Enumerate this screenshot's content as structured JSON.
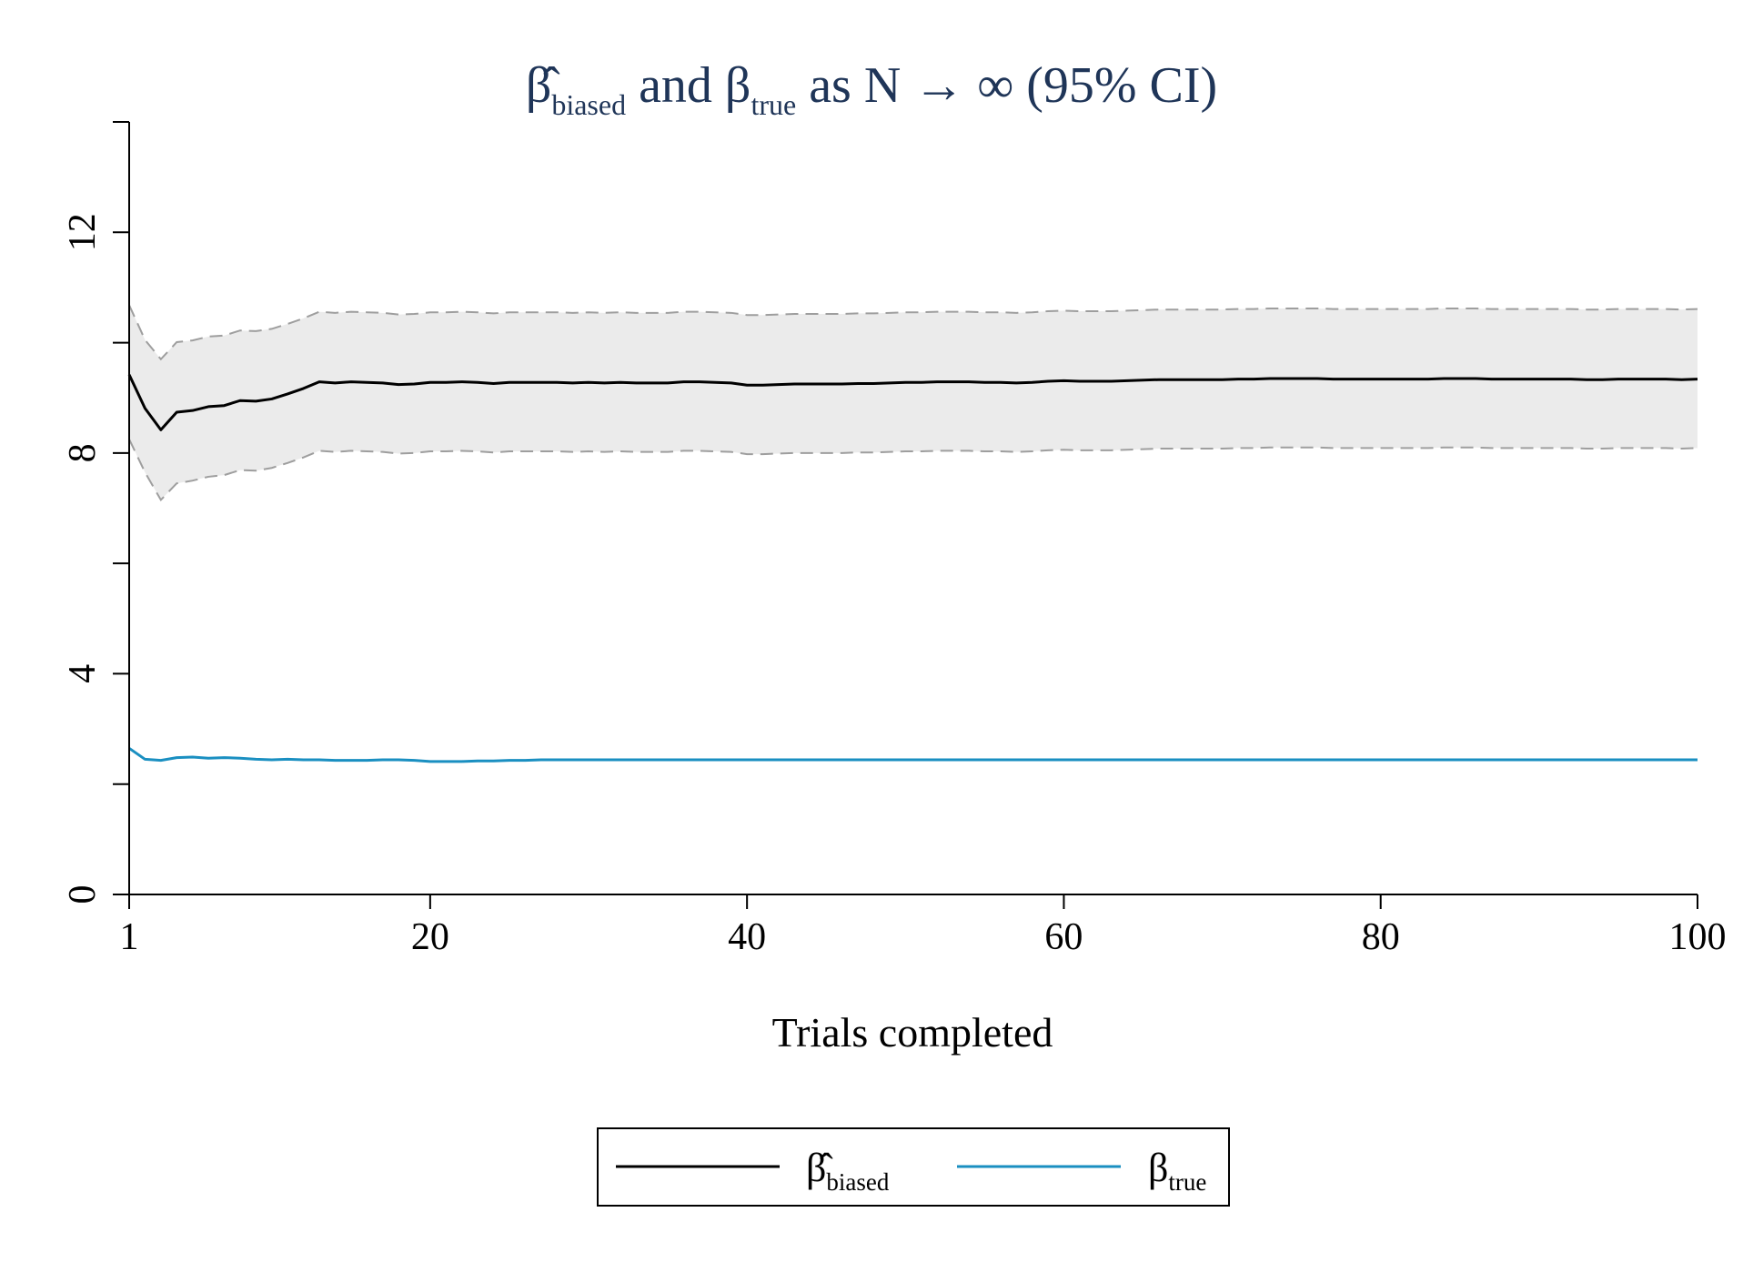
{
  "chart_data": {
    "type": "line",
    "title": {
      "beta_hat_symbol": "β̂",
      "sub_biased": "biased",
      "and_text": " and β",
      "sub_true": "true",
      "rest": " as N → ∞ (95% CI)"
    },
    "xlabel": "Trials completed",
    "ylabel": "",
    "xlim": [
      1,
      100
    ],
    "ylim": [
      0,
      14
    ],
    "x_ticks": [
      1,
      20,
      40,
      60,
      80,
      100
    ],
    "x_tick_labels": [
      "1",
      "20",
      "40",
      "60",
      "80",
      "100"
    ],
    "y_ticks_labeled": [
      0,
      4,
      8,
      12
    ],
    "y_tick_labels": [
      "0",
      "4",
      "8",
      "12"
    ],
    "y_ticks_minor": [
      2,
      6,
      10,
      14
    ],
    "grid": false,
    "legend_position": "bottom-center",
    "colors": {
      "biased": "#000000",
      "true": "#1a8fc1",
      "ci_fill": "#ebebeb",
      "ci_border": "#9e9e9e",
      "title": "#1f3558",
      "axis": "#000000"
    },
    "series": [
      {
        "name": "β̂",
        "subscript": "biased",
        "key": "biased",
        "x": [
          1,
          2,
          3,
          4,
          5,
          6,
          7,
          8,
          9,
          10,
          11,
          12,
          13,
          14,
          15,
          16,
          17,
          18,
          19,
          20,
          21,
          22,
          23,
          24,
          25,
          26,
          27,
          28,
          29,
          30,
          31,
          32,
          33,
          34,
          35,
          36,
          37,
          38,
          39,
          40,
          41,
          42,
          43,
          44,
          45,
          46,
          47,
          48,
          49,
          50,
          51,
          52,
          53,
          54,
          55,
          56,
          57,
          58,
          59,
          60,
          61,
          62,
          63,
          64,
          65,
          66,
          67,
          68,
          69,
          70,
          71,
          72,
          73,
          74,
          75,
          76,
          77,
          78,
          79,
          80,
          81,
          82,
          83,
          84,
          85,
          86,
          87,
          88,
          89,
          90,
          91,
          92,
          93,
          94,
          95,
          96,
          97,
          98,
          99,
          100
        ],
        "values": [
          9.42,
          8.81,
          8.42,
          8.74,
          8.77,
          8.84,
          8.86,
          8.95,
          8.94,
          8.98,
          9.07,
          9.17,
          9.29,
          9.27,
          9.29,
          9.28,
          9.27,
          9.24,
          9.25,
          9.28,
          9.28,
          9.29,
          9.28,
          9.26,
          9.28,
          9.28,
          9.28,
          9.28,
          9.27,
          9.28,
          9.27,
          9.28,
          9.27,
          9.27,
          9.27,
          9.29,
          9.29,
          9.28,
          9.27,
          9.23,
          9.23,
          9.24,
          9.25,
          9.25,
          9.25,
          9.25,
          9.26,
          9.26,
          9.27,
          9.28,
          9.28,
          9.29,
          9.29,
          9.29,
          9.28,
          9.28,
          9.27,
          9.28,
          9.3,
          9.31,
          9.3,
          9.3,
          9.3,
          9.31,
          9.32,
          9.33,
          9.33,
          9.33,
          9.33,
          9.33,
          9.34,
          9.34,
          9.35,
          9.35,
          9.35,
          9.35,
          9.34,
          9.34,
          9.34,
          9.34,
          9.34,
          9.34,
          9.34,
          9.35,
          9.35,
          9.35,
          9.34,
          9.34,
          9.34,
          9.34,
          9.34,
          9.34,
          9.33,
          9.33,
          9.34,
          9.34,
          9.34,
          9.34,
          9.33,
          9.34
        ],
        "ci_lower": [
          8.25,
          7.65,
          7.15,
          7.45,
          7.5,
          7.57,
          7.6,
          7.69,
          7.68,
          7.73,
          7.82,
          7.92,
          8.04,
          8.02,
          8.04,
          8.03,
          8.02,
          7.99,
          8.0,
          8.03,
          8.03,
          8.04,
          8.03,
          8.01,
          8.03,
          8.03,
          8.03,
          8.03,
          8.02,
          8.03,
          8.02,
          8.03,
          8.02,
          8.02,
          8.02,
          8.04,
          8.04,
          8.03,
          8.02,
          7.98,
          7.98,
          7.99,
          8.0,
          8.0,
          8.0,
          8.0,
          8.01,
          8.01,
          8.02,
          8.03,
          8.03,
          8.04,
          8.04,
          8.04,
          8.03,
          8.03,
          8.02,
          8.03,
          8.05,
          8.06,
          8.05,
          8.05,
          8.05,
          8.06,
          8.07,
          8.08,
          8.08,
          8.08,
          8.08,
          8.08,
          8.09,
          8.09,
          8.1,
          8.1,
          8.1,
          8.1,
          8.09,
          8.09,
          8.09,
          8.09,
          8.09,
          8.09,
          8.09,
          8.1,
          8.1,
          8.1,
          8.09,
          8.09,
          8.09,
          8.09,
          8.09,
          8.09,
          8.08,
          8.08,
          8.09,
          8.09,
          8.09,
          8.09,
          8.08,
          8.09
        ],
        "ci_upper": [
          10.68,
          10.05,
          9.7,
          10.01,
          10.04,
          10.11,
          10.13,
          10.22,
          10.21,
          10.25,
          10.34,
          10.44,
          10.56,
          10.54,
          10.56,
          10.55,
          10.54,
          10.51,
          10.52,
          10.55,
          10.55,
          10.56,
          10.55,
          10.53,
          10.55,
          10.55,
          10.55,
          10.55,
          10.54,
          10.55,
          10.54,
          10.55,
          10.54,
          10.54,
          10.54,
          10.56,
          10.56,
          10.55,
          10.54,
          10.5,
          10.5,
          10.51,
          10.52,
          10.52,
          10.52,
          10.52,
          10.53,
          10.53,
          10.54,
          10.55,
          10.55,
          10.56,
          10.56,
          10.56,
          10.55,
          10.55,
          10.54,
          10.55,
          10.57,
          10.58,
          10.57,
          10.57,
          10.57,
          10.58,
          10.59,
          10.6,
          10.6,
          10.6,
          10.6,
          10.6,
          10.61,
          10.61,
          10.62,
          10.62,
          10.62,
          10.62,
          10.61,
          10.61,
          10.61,
          10.61,
          10.61,
          10.61,
          10.61,
          10.62,
          10.62,
          10.62,
          10.61,
          10.61,
          10.61,
          10.61,
          10.61,
          10.61,
          10.6,
          10.6,
          10.61,
          10.61,
          10.61,
          10.61,
          10.6,
          10.61
        ]
      },
      {
        "name": "β",
        "subscript": "true",
        "key": "true",
        "x": [
          1,
          2,
          3,
          4,
          5,
          6,
          7,
          8,
          9,
          10,
          11,
          12,
          13,
          14,
          15,
          16,
          17,
          18,
          19,
          20,
          21,
          22,
          23,
          24,
          25,
          26,
          27,
          28,
          29,
          30,
          31,
          32,
          33,
          34,
          35,
          36,
          37,
          38,
          39,
          40,
          41,
          42,
          43,
          44,
          45,
          46,
          47,
          48,
          49,
          50,
          51,
          52,
          53,
          54,
          55,
          56,
          57,
          58,
          59,
          60,
          61,
          62,
          63,
          64,
          65,
          66,
          67,
          68,
          69,
          70,
          71,
          72,
          73,
          74,
          75,
          76,
          77,
          78,
          79,
          80,
          81,
          82,
          83,
          84,
          85,
          86,
          87,
          88,
          89,
          90,
          91,
          92,
          93,
          94,
          95,
          96,
          97,
          98,
          99,
          100
        ],
        "values": [
          2.65,
          2.45,
          2.43,
          2.48,
          2.49,
          2.47,
          2.48,
          2.47,
          2.45,
          2.44,
          2.45,
          2.44,
          2.44,
          2.43,
          2.43,
          2.43,
          2.44,
          2.44,
          2.43,
          2.41,
          2.41,
          2.41,
          2.42,
          2.42,
          2.43,
          2.43,
          2.44,
          2.44,
          2.44,
          2.44,
          2.44,
          2.44,
          2.44,
          2.44,
          2.44,
          2.44,
          2.44,
          2.44,
          2.44,
          2.44,
          2.44,
          2.44,
          2.44,
          2.44,
          2.44,
          2.44,
          2.44,
          2.44,
          2.44,
          2.44,
          2.44,
          2.44,
          2.44,
          2.44,
          2.44,
          2.44,
          2.44,
          2.44,
          2.44,
          2.44,
          2.44,
          2.44,
          2.44,
          2.44,
          2.44,
          2.44,
          2.44,
          2.44,
          2.44,
          2.44,
          2.44,
          2.44,
          2.44,
          2.44,
          2.44,
          2.44,
          2.44,
          2.44,
          2.44,
          2.44,
          2.44,
          2.44,
          2.44,
          2.44,
          2.44,
          2.44,
          2.44,
          2.44,
          2.44,
          2.44,
          2.44,
          2.44,
          2.44,
          2.44,
          2.44,
          2.44,
          2.44,
          2.44,
          2.44,
          2.44
        ]
      }
    ]
  }
}
